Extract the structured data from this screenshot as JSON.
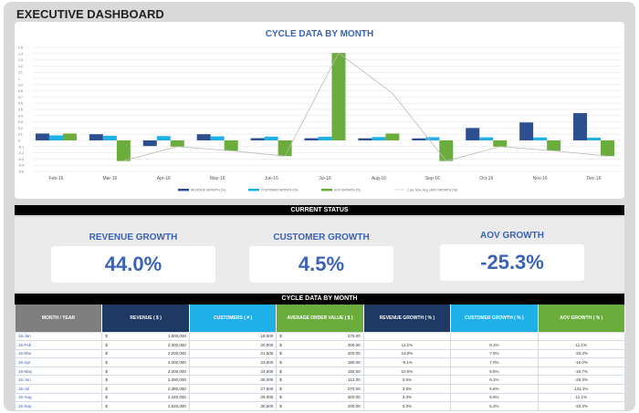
{
  "header": {
    "title": "EXECUTIVE DASHBOARD"
  },
  "chart_data": {
    "type": "bar",
    "title": "CYCLE DATA BY MONTH",
    "categories": [
      "Feb-16",
      "Mar-16",
      "Apr-16",
      "May-16",
      "Jun-16",
      "Jul-16",
      "Aug-16",
      "Sep-16",
      "Oct-16",
      "Nov-16",
      "Dec-16"
    ],
    "ylim": [
      -0.5,
      1.5
    ],
    "yticks": [
      "-0.5",
      "-0.4",
      "-0.3",
      "-0.2",
      "-0.1",
      "0",
      "0.1",
      "0.2",
      "0.3",
      "0.4",
      "0.5",
      "0.6",
      "0.7",
      "0.8",
      "0.9",
      "1",
      "1.1",
      "1.2",
      "1.3",
      "1.4",
      "1.5"
    ],
    "grid": true,
    "legend": "bottom",
    "series": [
      {
        "name": "REVENUE GROWTH (%)",
        "color": "#2e4f8f",
        "values": [
          0.111,
          0.1,
          -0.091,
          0.1,
          0.036,
          0.035,
          0.034,
          0.033,
          0.2,
          0.29,
          0.44
        ]
      },
      {
        "name": "CUSTOMER GROWTH (%)",
        "color": "#1fb0e8",
        "values": [
          0.081,
          0.075,
          0.07,
          0.065,
          0.061,
          0.058,
          0.055,
          0.052,
          0.05,
          0.048,
          0.045
        ]
      },
      {
        "name": "AOV GROWTH (%)",
        "color": "#6aad3d",
        "values": [
          0.111,
          -0.333,
          -0.1,
          -0.167,
          -0.253,
          1.411,
          0.111,
          -0.333,
          -0.1,
          -0.167,
          -0.253
        ]
      },
      {
        "name": "2 per. Mov. Avg. (AOV GROWTH (%))",
        "type": "line",
        "color": "#bbbbbb",
        "values": [
          null,
          -0.33,
          -0.1,
          -0.167,
          -0.253,
          1.411,
          0.76,
          -0.333,
          -0.1,
          -0.167,
          -0.253
        ]
      }
    ]
  },
  "status": {
    "bar_label": "CURRENT STATUS",
    "kpis": [
      {
        "label": "REVENUE GROWTH",
        "value": "44.0%"
      },
      {
        "label": "CUSTOMER GROWTH",
        "value": "4.5%"
      },
      {
        "label": "AOV GROWTH",
        "value": "-25.3%"
      }
    ]
  },
  "table": {
    "title": "CYCLE DATA BY MONTH",
    "headers": [
      "MONTH / YEAR",
      "REVENUE ( $ )",
      "CUSTOMERS ( # )",
      "AVERAGE ORDER VALUE ( $ )",
      "REVENUE GROWTH ( % )",
      "CUSTOMER GROWTH ( % )",
      "AOV GROWTH ( % )"
    ],
    "header_colors": [
      "#7f7f7f",
      "#1f3864",
      "#1fb0e8",
      "#6aad3d",
      "#1f3864",
      "#1fb0e8",
      "#6aad3d"
    ],
    "currency": "$",
    "rows": [
      [
        "16-Jan",
        "1,800,000",
        "18,500",
        "270.00",
        "",
        "",
        ""
      ],
      [
        "16-Feb",
        "2,000,000",
        "20,000",
        "300.00",
        "11.1%",
        "8.1%",
        "11.1%"
      ],
      [
        "16-Mar",
        "2,200,000",
        "21,500",
        "200.00",
        "10.0%",
        "7.5%",
        "-33.3%"
      ],
      [
        "16-Apr",
        "2,000,000",
        "23,000",
        "180.00",
        "-9.1%",
        "7.0%",
        "-10.0%"
      ],
      [
        "16-May",
        "2,200,000",
        "24,500",
        "150.00",
        "10.0%",
        "6.5%",
        "-16.7%"
      ],
      [
        "16-Jun",
        "2,280,000",
        "26,000",
        "112.00",
        "3.6%",
        "6.1%",
        "-25.3%"
      ],
      [
        "16-Jul",
        "2,360,000",
        "27,500",
        "270.00",
        "3.5%",
        "5.8%",
        "141.1%"
      ],
      [
        "16-Aug",
        "2,440,000",
        "29,000",
        "300.00",
        "3.4%",
        "5.5%",
        "11.1%"
      ],
      [
        "16-Sep",
        "2,520,000",
        "30,500",
        "200.00",
        "3.3%",
        "5.2%",
        "-33.3%"
      ]
    ]
  }
}
